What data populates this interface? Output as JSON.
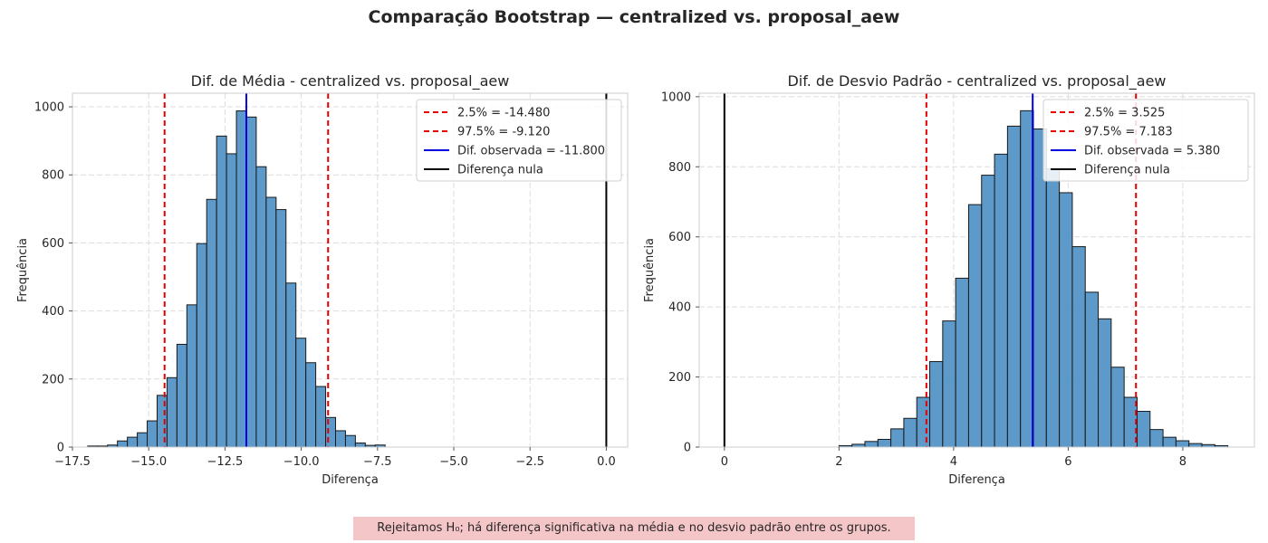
{
  "title": "Comparação Bootstrap — centralized vs. proposal_aew",
  "footer_note": "Rejeitamos H₀; há diferença significativa na média e no desvio padrão entre os grupos.",
  "colors": {
    "bars": "#4b8fc4",
    "bar_edge": "#1a1a1a",
    "ci": "#e00000",
    "observed": "#0000e0",
    "null": "#000000",
    "note_bg": "#f5c6c8"
  },
  "chart_data": [
    {
      "type": "bar",
      "title": "Dif. de Média - centralized vs. proposal_aew",
      "xlabel": "Diferença",
      "ylabel": "Frequência",
      "xlim": [
        -17.5,
        0.7
      ],
      "ylim": [
        0,
        1040
      ],
      "xticks": [
        -17.5,
        -15.0,
        -12.5,
        -10.0,
        -7.5,
        -5.0,
        -2.5,
        0.0
      ],
      "xtick_labels": [
        "−17.5",
        "−15.0",
        "−12.5",
        "−10.0",
        "−7.5",
        "−5.0",
        "−2.5",
        "0.0"
      ],
      "yticks": [
        0,
        200,
        400,
        600,
        800,
        1000
      ],
      "grid": true,
      "legend_position": "top-right",
      "bin_start": -17.0,
      "bin_width": 0.325,
      "values": [
        3,
        3,
        6,
        18,
        29,
        42,
        77,
        152,
        204,
        302,
        418,
        598,
        728,
        914,
        862,
        988,
        970,
        824,
        734,
        698,
        482,
        320,
        248,
        178,
        87,
        48,
        34,
        12,
        5,
        6
      ],
      "lines": [
        {
          "label": "2.5% = -14.480",
          "x": -14.48,
          "style": "ci"
        },
        {
          "label": "97.5% = -9.120",
          "x": -9.12,
          "style": "ci"
        },
        {
          "label": "Dif. observada = -11.800",
          "x": -11.8,
          "style": "observed"
        },
        {
          "label": "Diferença nula",
          "x": 0.0,
          "style": "null"
        }
      ]
    },
    {
      "type": "bar",
      "title": "Dif. de Desvio Padrão - centralized vs. proposal_aew",
      "xlabel": "Diferença",
      "ylabel": "Frequência",
      "xlim": [
        -0.44,
        9.25
      ],
      "ylim": [
        0,
        1010
      ],
      "xticks": [
        0,
        2,
        4,
        6,
        8
      ],
      "xtick_labels": [
        "0",
        "2",
        "4",
        "6",
        "8"
      ],
      "yticks": [
        0,
        200,
        400,
        600,
        800,
        1000
      ],
      "grid": true,
      "legend_position": "top-right",
      "bin_start": 2.0,
      "bin_width": 0.2262,
      "values": [
        4,
        8,
        16,
        22,
        52,
        82,
        142,
        244,
        360,
        482,
        692,
        776,
        836,
        916,
        960,
        908,
        794,
        726,
        572,
        442,
        366,
        228,
        142,
        102,
        50,
        28,
        18,
        10,
        7,
        4
      ],
      "lines": [
        {
          "label": "2.5% = 3.525",
          "x": 3.525,
          "style": "ci"
        },
        {
          "label": "97.5% = 7.183",
          "x": 7.183,
          "style": "ci"
        },
        {
          "label": "Dif. observada = 5.380",
          "x": 5.38,
          "style": "observed"
        },
        {
          "label": "Diferença nula",
          "x": 0.0,
          "style": "null"
        }
      ]
    }
  ]
}
